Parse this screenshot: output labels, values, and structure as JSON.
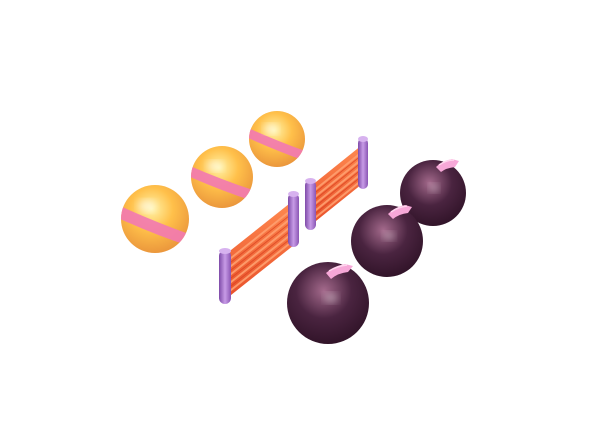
{
  "scene": {
    "name": "isometric-game-pieces",
    "background": "#ffffff"
  },
  "colors": {
    "ball_light": "#fff3a8",
    "ball_mid": "#ffc04a",
    "ball_dark": "#e8913a",
    "ball_stripe": "#f27bb0",
    "bomb_light": "#a46a8c",
    "bomb_mid": "#4a2440",
    "bomb_dark": "#2a0f22",
    "bomb_fuse": "#f7a8d8",
    "fence_post": "#b57bd6",
    "fence_post_dark": "#7e4aa8",
    "fence_rail": "#ff6e3a",
    "fence_rail_light": "#ffa070",
    "shadow": "#000000"
  },
  "pieces": {
    "balls": [
      {
        "id": "ball-1"
      },
      {
        "id": "ball-2"
      },
      {
        "id": "ball-3"
      }
    ],
    "fences": [
      {
        "id": "fence-1"
      },
      {
        "id": "fence-2"
      }
    ],
    "bombs": [
      {
        "id": "bomb-1"
      },
      {
        "id": "bomb-2"
      },
      {
        "id": "bomb-3"
      }
    ]
  }
}
